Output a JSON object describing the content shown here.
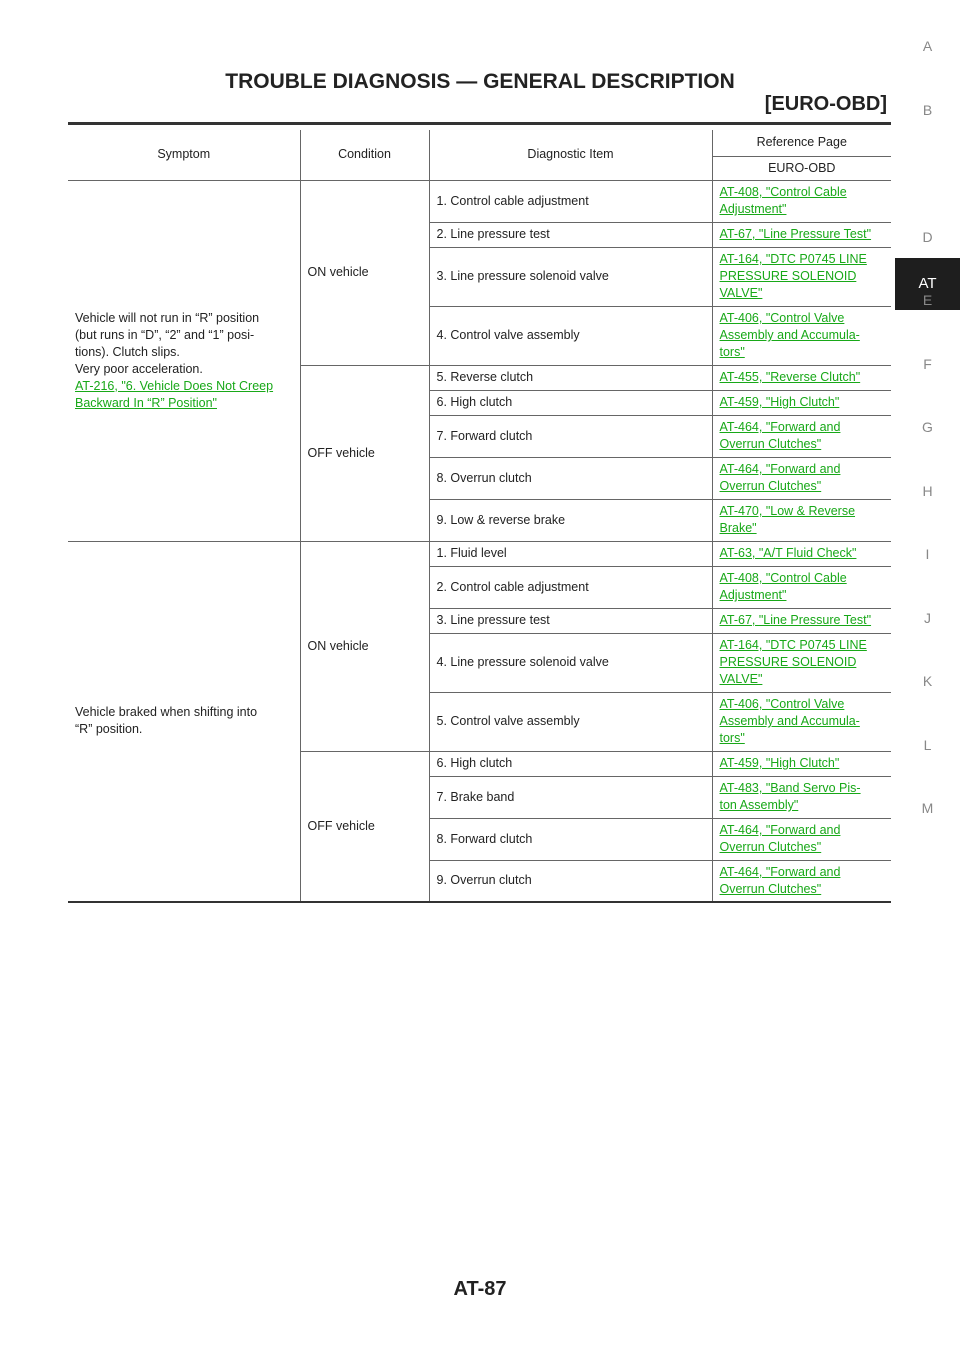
{
  "header": {
    "title": "TROUBLE DIAGNOSIS — GENERAL DESCRIPTION",
    "subtitle": "[EURO-OBD]"
  },
  "side_tabs": [
    {
      "label": "A",
      "active": false
    },
    {
      "label": "B",
      "active": false
    },
    {
      "label": "AT",
      "active": true
    },
    {
      "label": "D",
      "active": false
    },
    {
      "label": "E",
      "active": false
    },
    {
      "label": "F",
      "active": false
    },
    {
      "label": "G",
      "active": false
    },
    {
      "label": "H",
      "active": false
    },
    {
      "label": "I",
      "active": false
    },
    {
      "label": "J",
      "active": false
    },
    {
      "label": "K",
      "active": false
    },
    {
      "label": "L",
      "active": false
    },
    {
      "label": "M",
      "active": false
    }
  ],
  "table": {
    "columns": {
      "symptom": "Symptom",
      "condition": "Condition",
      "item": "Diagnostic Item",
      "reference": "Reference Page",
      "reference_sub": "EURO-OBD"
    },
    "groups": [
      {
        "symptom_lines": [
          "Vehicle will not run in “R” position",
          "(but runs in “D”, “2” and “1” posi-",
          "tions). Clutch slips.",
          "Very poor acceleration."
        ],
        "symptom_link_lines": [
          "AT-216, \"6. Vehicle Does Not Creep ",
          "Backward In “R” Position\""
        ],
        "conditions": [
          {
            "label": "ON vehicle",
            "items": [
              {
                "text": "1. Control cable adjustment",
                "ref": [
                  "AT-408, \"Control Cable ",
                  "Adjustment\""
                ]
              },
              {
                "text": "2. Line pressure test",
                "ref": [
                  "AT-67, \"Line Pressure Test\""
                ]
              },
              {
                "text": "3. Line pressure solenoid valve",
                "ref": [
                  "AT-164, \"DTC P0745 LINE ",
                  "PRESSURE SOLENOID ",
                  "VALVE\""
                ]
              },
              {
                "text": "4. Control valve assembly",
                "ref": [
                  "AT-406, \"Control Valve ",
                  "Assembly and Accumula-",
                  "tors\""
                ]
              }
            ]
          },
          {
            "label": "OFF vehicle",
            "items": [
              {
                "text": "5. Reverse clutch",
                "ref": [
                  "AT-455, \"Reverse Clutch\""
                ]
              },
              {
                "text": "6. High clutch",
                "ref": [
                  "AT-459, \"High Clutch\""
                ]
              },
              {
                "text": "7. Forward clutch",
                "ref": [
                  "AT-464, \"Forward and ",
                  "Overrun Clutches\""
                ]
              },
              {
                "text": "8. Overrun clutch",
                "ref": [
                  "AT-464, \"Forward and ",
                  "Overrun Clutches\""
                ]
              },
              {
                "text": "9. Low & reverse brake",
                "ref": [
                  "AT-470, \"Low & Reverse ",
                  "Brake\""
                ]
              }
            ]
          }
        ]
      },
      {
        "symptom_lines": [
          "Vehicle braked when shifting into",
          "“R” position."
        ],
        "symptom_link_lines": [],
        "conditions": [
          {
            "label": "ON vehicle",
            "items": [
              {
                "text": "1. Fluid level",
                "ref": [
                  "AT-63, \"A/T Fluid Check\""
                ]
              },
              {
                "text": "2. Control cable adjustment",
                "ref": [
                  "AT-408, \"Control Cable ",
                  "Adjustment\""
                ]
              },
              {
                "text": "3. Line pressure test",
                "ref": [
                  "AT-67, \"Line Pressure Test\""
                ]
              },
              {
                "text": "4. Line pressure solenoid valve",
                "ref": [
                  "AT-164, \"DTC P0745 LINE ",
                  "PRESSURE SOLENOID ",
                  "VALVE\""
                ]
              },
              {
                "text": "5. Control valve assembly",
                "ref": [
                  "AT-406, \"Control Valve ",
                  "Assembly and Accumula-",
                  "tors\""
                ]
              }
            ]
          },
          {
            "label": "OFF vehicle",
            "items": [
              {
                "text": "6. High clutch",
                "ref": [
                  "AT-459, \"High Clutch\""
                ]
              },
              {
                "text": "7. Brake band",
                "ref": [
                  "AT-483, \"Band Servo Pis-",
                  "ton Assembly\""
                ]
              },
              {
                "text": "8. Forward clutch",
                "ref": [
                  "AT-464, \"Forward and ",
                  "Overrun Clutches\""
                ]
              },
              {
                "text": "9. Overrun clutch",
                "ref": [
                  "AT-464, \"Forward and ",
                  "Overrun Clutches\""
                ]
              }
            ]
          }
        ]
      }
    ]
  },
  "footer": {
    "page_number": "AT-87"
  }
}
